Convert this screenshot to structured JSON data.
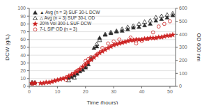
{
  "chart_data": {
    "type": "scatter",
    "xlabel": "Time (hours)",
    "ylabel": "DCW (g/L)",
    "y2label": "OD 600 nm",
    "xlim": [
      0,
      52
    ],
    "xticks": [
      0,
      10,
      20,
      30,
      40,
      50
    ],
    "ylim": [
      0,
      100
    ],
    "yticks": [
      0,
      10,
      20,
      30,
      40,
      50,
      60,
      70,
      80,
      90,
      100
    ],
    "y2lim": [
      0,
      600
    ],
    "y2ticks": [
      0,
      100,
      200,
      300,
      400,
      500,
      600
    ],
    "grid": true,
    "legend": "upper left",
    "series": [
      {
        "name": "▲ Avg (n = 3) SUF 30-L DCW",
        "color": "#2a2a2a",
        "marker": "triangle",
        "x": [
          1,
          2,
          14,
          15,
          16,
          17,
          18,
          19,
          20,
          21,
          22,
          23,
          24,
          25,
          27,
          29,
          31,
          33,
          35,
          37,
          39,
          41,
          43,
          45,
          47,
          49,
          51
        ],
        "values": [
          4,
          5,
          11,
          12,
          14,
          16,
          19,
          21,
          24,
          28,
          35,
          49,
          51,
          62,
          66,
          68,
          70,
          71,
          73,
          75,
          76,
          78,
          80,
          84,
          86,
          88,
          91
        ]
      },
      {
        "name": "△ Avg (n = 3) SUF 30-L OD",
        "color": "#2a2a2a",
        "marker": "triangle-open",
        "axis": "y2",
        "x": [
          1,
          14,
          16,
          20,
          22,
          24,
          25,
          27,
          29,
          31,
          33,
          35,
          37,
          39,
          41,
          43,
          45,
          47,
          49,
          51
        ],
        "values": [
          30,
          45,
          65,
          155,
          215,
          325,
          355,
          400,
          415,
          425,
          440,
          455,
          465,
          480,
          495,
          505,
          530,
          540,
          550,
          560
        ]
      },
      {
        "name": "20% Vol 300-L SUF DCW",
        "color": "#cc2222",
        "marker": "star",
        "x": [
          1,
          2,
          4,
          5,
          6,
          7,
          8,
          9,
          10,
          11,
          12,
          13,
          14,
          15,
          16,
          17,
          18,
          19,
          20,
          21,
          22,
          23,
          24,
          25,
          26,
          27,
          28,
          29,
          30,
          31,
          32,
          33,
          34,
          35,
          36,
          37,
          38,
          39,
          40,
          41,
          42,
          43,
          44,
          45,
          46,
          47,
          48,
          49,
          50,
          51
        ],
        "values": [
          4,
          4,
          4,
          4,
          5,
          5,
          6,
          7,
          8,
          9,
          10,
          11,
          13,
          15,
          17,
          19,
          22,
          25,
          28,
          31,
          34,
          37,
          40,
          43,
          45,
          47,
          49,
          51,
          53,
          54,
          55,
          56,
          57,
          58,
          59,
          59,
          60,
          60,
          60,
          61,
          61,
          62,
          62,
          62,
          63,
          63,
          64,
          65,
          65,
          66
        ]
      },
      {
        "name": "7-L SIP OD (n = 3)",
        "color": "#cc2222",
        "marker": "circle-open",
        "axis": "y2",
        "x": [
          1,
          2,
          13,
          14,
          17,
          20,
          21,
          22,
          24,
          26,
          28,
          30,
          32,
          36,
          38,
          40,
          42,
          44,
          46,
          48,
          50
        ],
        "values": [
          20,
          25,
          50,
          65,
          120,
          195,
          210,
          225,
          245,
          295,
          330,
          345,
          360,
          375,
          330,
          350,
          365,
          415,
          460,
          480,
          500
        ]
      }
    ]
  }
}
